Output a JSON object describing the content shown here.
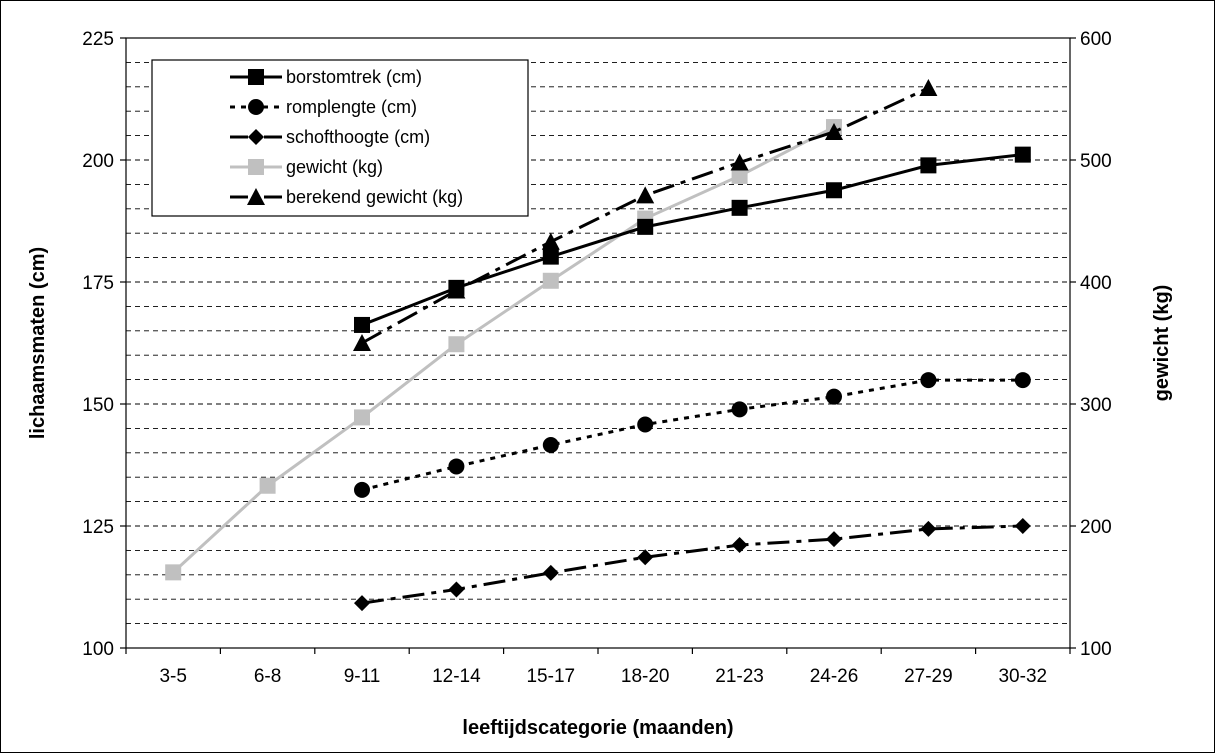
{
  "chart_data": {
    "type": "line",
    "xlabel": "leeftijdscategorie (maanden)",
    "ylabel": "lichaamsmaten (cm)",
    "y2label": "gewicht (kg)",
    "categories": [
      "3-5",
      "6-8",
      "9-11",
      "12-14",
      "15-17",
      "18-20",
      "21-23",
      "24-26",
      "27-29",
      "30-32"
    ],
    "ylim": [
      100,
      225
    ],
    "yticks": [
      100,
      125,
      150,
      175,
      200,
      225
    ],
    "y2lim": [
      100,
      600
    ],
    "y2ticks": [
      100,
      200,
      300,
      400,
      500,
      600
    ],
    "grid": "horizontal dashed every 5 cm",
    "legend_position": "top-left",
    "series": [
      {
        "name": "borstomtrek (cm)",
        "axis": "left",
        "color": "#000000",
        "style": "solid",
        "marker": "square",
        "values": [
          null,
          null,
          166.2,
          173.8,
          180.2,
          186.3,
          190.2,
          193.8,
          198.9,
          201.1
        ]
      },
      {
        "name": "romplengte (cm)",
        "axis": "left",
        "color": "#000000",
        "style": "dotted",
        "marker": "circle",
        "values": [
          null,
          null,
          132.4,
          137.2,
          141.6,
          145.8,
          148.9,
          151.5,
          154.9,
          154.9
        ]
      },
      {
        "name": "schofthoogte (cm)",
        "axis": "left",
        "color": "#000000",
        "style": "dashdot",
        "marker": "diamond",
        "values": [
          null,
          null,
          109.2,
          112.0,
          115.4,
          118.6,
          121.1,
          122.3,
          124.4,
          125.0
        ]
      },
      {
        "name": "gewicht (kg)",
        "axis": "right",
        "color": "#c0c0c0",
        "style": "solid",
        "marker": "square",
        "values": [
          162,
          233,
          289,
          349,
          401,
          452,
          487,
          527,
          null,
          null
        ]
      },
      {
        "name": "berekend gewicht (kg)",
        "axis": "right",
        "color": "#000000",
        "style": "dashdot",
        "marker": "triangle",
        "values": [
          null,
          null,
          350,
          393,
          433,
          471,
          498,
          523,
          559,
          null
        ]
      }
    ]
  }
}
